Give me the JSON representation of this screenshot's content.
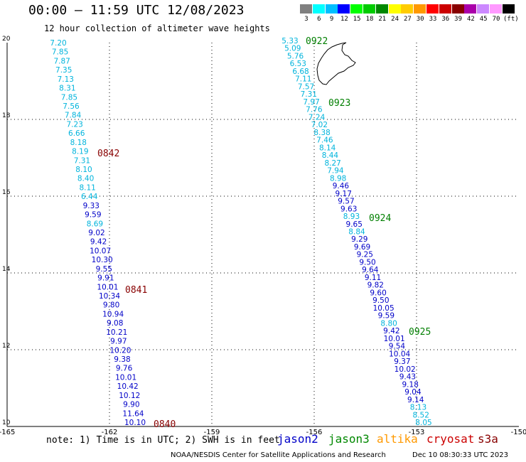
{
  "header": {
    "title": "00:00 – 11:59 UTC 12/08/2023",
    "subtitle": "12 hour collection of altimeter wave heights"
  },
  "colorbar": {
    "unit": "(ft)",
    "levels": [
      {
        "label": "3",
        "color": "#808080"
      },
      {
        "label": "6",
        "color": "#00ffff"
      },
      {
        "label": "9",
        "color": "#00bfff"
      },
      {
        "label": "12",
        "color": "#0000ff"
      },
      {
        "label": "15",
        "color": "#00ff00"
      },
      {
        "label": "18",
        "color": "#00cc00"
      },
      {
        "label": "21",
        "color": "#008800"
      },
      {
        "label": "24",
        "color": "#ffff00"
      },
      {
        "label": "27",
        "color": "#ffcc00"
      },
      {
        "label": "30",
        "color": "#ff9900"
      },
      {
        "label": "33",
        "color": "#ff0000"
      },
      {
        "label": "36",
        "color": "#cc0000"
      },
      {
        "label": "39",
        "color": "#880000"
      },
      {
        "label": "42",
        "color": "#aa00aa"
      },
      {
        "label": "45",
        "color": "#cc88ff"
      },
      {
        "label": "70",
        "color": "#ff99ff"
      },
      {
        "label": "",
        "color": "#000000"
      }
    ]
  },
  "map": {
    "lon_range": [
      -165,
      -150
    ],
    "lat_range": [
      10,
      20
    ],
    "x_ticks": [
      "-165",
      "-162",
      "-159",
      "-156",
      "-153",
      "-150"
    ],
    "y_ticks": [
      "20",
      "18",
      "16",
      "14",
      "12",
      "10"
    ],
    "colors": {
      "c": "#00b4dc",
      "b": "#0000c8",
      "r": "#880000",
      "g": "#007f00"
    },
    "west_track": [
      {
        "v": "7.20",
        "c": "c"
      },
      {
        "v": "7.85",
        "c": "c"
      },
      {
        "v": "7.87",
        "c": "c"
      },
      {
        "v": "7.35",
        "c": "c"
      },
      {
        "v": "7.13",
        "c": "c"
      },
      {
        "v": "8.31",
        "c": "c"
      },
      {
        "v": "7.85",
        "c": "c"
      },
      {
        "v": "7.56",
        "c": "c"
      },
      {
        "v": "7.84",
        "c": "c"
      },
      {
        "v": "7.23",
        "c": "c"
      },
      {
        "v": "6.66",
        "c": "c"
      },
      {
        "v": "8.18",
        "c": "c"
      },
      {
        "v": "8.19",
        "c": "c"
      },
      {
        "v": "7.31",
        "c": "c"
      },
      {
        "v": "8.10",
        "c": "c"
      },
      {
        "v": "8.40",
        "c": "c"
      },
      {
        "v": "8.11",
        "c": "c"
      },
      {
        "v": "6.44",
        "c": "c"
      },
      {
        "v": "9.33",
        "c": "b"
      },
      {
        "v": "9.59",
        "c": "b"
      },
      {
        "v": "8.69",
        "c": "c"
      },
      {
        "v": "9.02",
        "c": "b"
      },
      {
        "v": "9.42",
        "c": "b"
      },
      {
        "v": "10.07",
        "c": "b"
      },
      {
        "v": "10.30",
        "c": "b"
      },
      {
        "v": "9.55",
        "c": "b"
      },
      {
        "v": "9.91",
        "c": "b"
      },
      {
        "v": "10.01",
        "c": "b"
      },
      {
        "v": "10.34",
        "c": "b"
      },
      {
        "v": "9.80",
        "c": "b"
      },
      {
        "v": "10.94",
        "c": "b"
      },
      {
        "v": "9.08",
        "c": "b"
      },
      {
        "v": "10.21",
        "c": "b"
      },
      {
        "v": "9.97",
        "c": "b"
      },
      {
        "v": "10.20",
        "c": "b"
      },
      {
        "v": "9.38",
        "c": "b"
      },
      {
        "v": "9.76",
        "c": "b"
      },
      {
        "v": "10.01",
        "c": "b"
      },
      {
        "v": "10.42",
        "c": "b"
      },
      {
        "v": "10.12",
        "c": "b"
      },
      {
        "v": "9.90",
        "c": "b"
      },
      {
        "v": "11.64",
        "c": "b"
      },
      {
        "v": "10.10",
        "c": "b"
      }
    ],
    "east_track": [
      {
        "v": "5.33",
        "c": "c"
      },
      {
        "v": "5.09",
        "c": "c"
      },
      {
        "v": "5.76",
        "c": "c"
      },
      {
        "v": "6.53",
        "c": "c"
      },
      {
        "v": "6.68",
        "c": "c"
      },
      {
        "v": "7.11",
        "c": "c"
      },
      {
        "v": "7.57",
        "c": "c"
      },
      {
        "v": "7.31",
        "c": "c"
      },
      {
        "v": "7.97",
        "c": "c"
      },
      {
        "v": "7.76",
        "c": "c"
      },
      {
        "v": "7.24",
        "c": "c"
      },
      {
        "v": "7.02",
        "c": "c"
      },
      {
        "v": "8.38",
        "c": "c"
      },
      {
        "v": "7.46",
        "c": "c"
      },
      {
        "v": "8.14",
        "c": "c"
      },
      {
        "v": "8.44",
        "c": "c"
      },
      {
        "v": "8.27",
        "c": "c"
      },
      {
        "v": "7.94",
        "c": "c"
      },
      {
        "v": "8.98",
        "c": "c"
      },
      {
        "v": "9.46",
        "c": "b"
      },
      {
        "v": "9.17",
        "c": "b"
      },
      {
        "v": "9.57",
        "c": "b"
      },
      {
        "v": "9.63",
        "c": "b"
      },
      {
        "v": "8.93",
        "c": "c"
      },
      {
        "v": "9.65",
        "c": "b"
      },
      {
        "v": "8.84",
        "c": "c"
      },
      {
        "v": "9.29",
        "c": "b"
      },
      {
        "v": "9.69",
        "c": "b"
      },
      {
        "v": "9.25",
        "c": "b"
      },
      {
        "v": "9.50",
        "c": "b"
      },
      {
        "v": "9.64",
        "c": "b"
      },
      {
        "v": "9.11",
        "c": "b"
      },
      {
        "v": "9.82",
        "c": "b"
      },
      {
        "v": "9.60",
        "c": "b"
      },
      {
        "v": "9.50",
        "c": "b"
      },
      {
        "v": "10.05",
        "c": "b"
      },
      {
        "v": "9.59",
        "c": "b"
      },
      {
        "v": "8.80",
        "c": "c"
      },
      {
        "v": "9.42",
        "c": "b"
      },
      {
        "v": "10.01",
        "c": "b"
      },
      {
        "v": "9.54",
        "c": "b"
      },
      {
        "v": "10.04",
        "c": "b"
      },
      {
        "v": "9.37",
        "c": "b"
      },
      {
        "v": "10.02",
        "c": "b"
      },
      {
        "v": "9.43",
        "c": "b"
      },
      {
        "v": "9.18",
        "c": "b"
      },
      {
        "v": "9.04",
        "c": "b"
      },
      {
        "v": "9.14",
        "c": "b"
      },
      {
        "v": "8.13",
        "c": "c"
      },
      {
        "v": "8.52",
        "c": "c"
      },
      {
        "v": "8.05",
        "c": "c"
      }
    ],
    "time_labels": [
      {
        "t": "0840",
        "c": "r"
      },
      {
        "t": "0841",
        "c": "r"
      },
      {
        "t": "0842",
        "c": "r"
      },
      {
        "t": "0922",
        "c": "g"
      },
      {
        "t": "0923",
        "c": "g"
      },
      {
        "t": "0924",
        "c": "g"
      },
      {
        "t": "0925",
        "c": "g"
      }
    ]
  },
  "footer": {
    "note": "note: 1) Time is in UTC; 2) SWH is in feet",
    "satellites": [
      {
        "name": "jason2",
        "color": "#0000c8"
      },
      {
        "name": "jason3",
        "color": "#008800"
      },
      {
        "name": "altika",
        "color": "#ff9900"
      },
      {
        "name": "cryosat",
        "color": "#cc0000"
      },
      {
        "name": "s3a",
        "color": "#880000"
      }
    ],
    "credit": "NOAA/NESDIS Center for Satellite Applications and Research",
    "timestamp": "Dec 10 08:30:33 UTC 2023"
  }
}
